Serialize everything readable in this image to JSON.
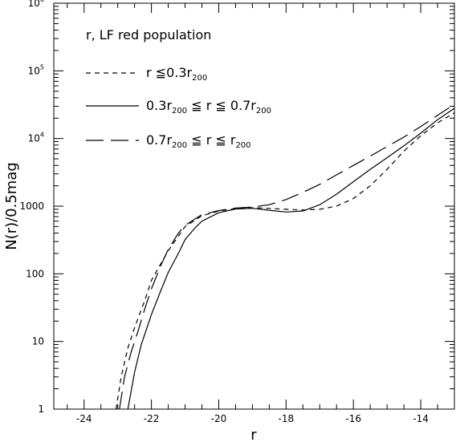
{
  "chart_data": {
    "type": "line",
    "title": "r, LF red population",
    "xlabel": "r",
    "ylabel": "N(r)/0.5mag",
    "xlim": [
      -24.9,
      -13.0
    ],
    "ylim": [
      1,
      1000000
    ],
    "yscale": "log",
    "grid": false,
    "legend_position": "top-left",
    "x_ticks": [
      {
        "value": -24,
        "label": "-24"
      },
      {
        "value": -22,
        "label": "-22"
      },
      {
        "value": -20,
        "label": "-20"
      },
      {
        "value": -18,
        "label": "-18"
      },
      {
        "value": -16,
        "label": "-16"
      },
      {
        "value": -14,
        "label": "-14"
      }
    ],
    "y_ticks": [
      {
        "value": 1,
        "label": "1"
      },
      {
        "value": 10,
        "label": "10"
      },
      {
        "value": 100,
        "label": "100"
      },
      {
        "value": 1000,
        "label": "1000"
      },
      {
        "value": 10000,
        "label": "10",
        "exp": "4"
      },
      {
        "value": 100000,
        "label": "10",
        "exp": "5"
      },
      {
        "value": 1000000,
        "label": "10",
        "exp": "6"
      }
    ],
    "series": [
      {
        "name": "r ≦0.3r200",
        "label_parts": [
          {
            "t": "r  ≦0.3r"
          },
          {
            "t": "200",
            "sub": true
          }
        ],
        "dash": "6,5",
        "points": [
          [
            -23.05,
            1
          ],
          [
            -22.9,
            3
          ],
          [
            -22.7,
            8
          ],
          [
            -22.5,
            16
          ],
          [
            -22.2,
            40
          ],
          [
            -22,
            80
          ],
          [
            -21.5,
            220
          ],
          [
            -21,
            500
          ],
          [
            -20.5,
            720
          ],
          [
            -20,
            850
          ],
          [
            -19.5,
            920
          ],
          [
            -19,
            950
          ],
          [
            -18.5,
            930
          ],
          [
            -18,
            900
          ],
          [
            -17.5,
            880
          ],
          [
            -17,
            900
          ],
          [
            -16.5,
            1000
          ],
          [
            -16,
            1300
          ],
          [
            -15.5,
            2000
          ],
          [
            -15,
            3500
          ],
          [
            -14.5,
            6500
          ],
          [
            -14,
            11000
          ],
          [
            -13.5,
            17000
          ],
          [
            -13,
            24000
          ]
        ]
      },
      {
        "name": "0.3r200 ≦ r ≦ 0.7r200",
        "label_parts": [
          {
            "t": "0.3r"
          },
          {
            "t": "200",
            "sub": true
          },
          {
            "t": " ≦  r  ≦  0.7r"
          },
          {
            "t": "200",
            "sub": true
          }
        ],
        "dash": "",
        "points": [
          [
            -22.7,
            1
          ],
          [
            -22.5,
            3.5
          ],
          [
            -22.3,
            9
          ],
          [
            -22,
            25
          ],
          [
            -21.7,
            60
          ],
          [
            -21.5,
            105
          ],
          [
            -21.2,
            200
          ],
          [
            -21,
            320
          ],
          [
            -20.7,
            480
          ],
          [
            -20.5,
            600
          ],
          [
            -20,
            800
          ],
          [
            -19.5,
            910
          ],
          [
            -19,
            930
          ],
          [
            -18.5,
            870
          ],
          [
            -18,
            820
          ],
          [
            -17.5,
            850
          ],
          [
            -17,
            1050
          ],
          [
            -16.5,
            1500
          ],
          [
            -16,
            2300
          ],
          [
            -15.5,
            3500
          ],
          [
            -15,
            5200
          ],
          [
            -14.5,
            7800
          ],
          [
            -14,
            12000
          ],
          [
            -13.5,
            19000
          ],
          [
            -13,
            28000
          ]
        ]
      },
      {
        "name": "0.7r200 ≦ r ≦ r200",
        "label_parts": [
          {
            "t": "0.7r"
          },
          {
            "t": "200",
            "sub": true
          },
          {
            "t": " ≦  r  ≦  r"
          },
          {
            "t": "200",
            "sub": true
          }
        ],
        "dash": "22,9",
        "points": [
          [
            -22.95,
            1
          ],
          [
            -22.8,
            3
          ],
          [
            -22.6,
            7
          ],
          [
            -22.4,
            14
          ],
          [
            -22.2,
            30
          ],
          [
            -22,
            60
          ],
          [
            -21.7,
            140
          ],
          [
            -21.5,
            230
          ],
          [
            -21.2,
            400
          ],
          [
            -21,
            520
          ],
          [
            -20.5,
            750
          ],
          [
            -20,
            860
          ],
          [
            -19.5,
            940
          ],
          [
            -19,
            970
          ],
          [
            -18.5,
            1050
          ],
          [
            -18,
            1250
          ],
          [
            -17.5,
            1600
          ],
          [
            -17,
            2100
          ],
          [
            -16.5,
            2900
          ],
          [
            -16,
            4000
          ],
          [
            -15.5,
            5500
          ],
          [
            -15,
            7600
          ],
          [
            -14.5,
            10500
          ],
          [
            -14,
            15000
          ],
          [
            -13.5,
            22000
          ],
          [
            -13,
            32000
          ]
        ]
      }
    ]
  }
}
